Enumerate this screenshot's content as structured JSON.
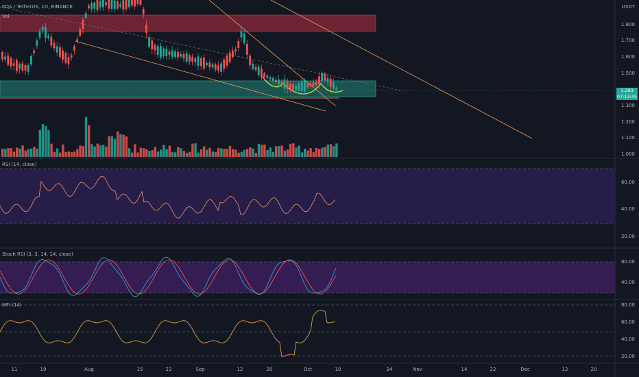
{
  "symbol_line": {
    "pair": "KDA / TetherUS",
    "interval": "1D",
    "exchange": "BINANCE"
  },
  "main_pane": {
    "volume_label": "Vol",
    "currency_label": "USDT",
    "price_axis": [
      "1.800",
      "1.700",
      "1.600",
      "1.500",
      "1.300",
      "1.200",
      "1.100",
      "1.000"
    ],
    "current_price": "1.393",
    "countdown": "07:13:45"
  },
  "rsi_pane": {
    "title": "RSI (14, close)",
    "axis": [
      "60.00",
      "40.00",
      "20.00"
    ]
  },
  "stoch_pane": {
    "title": "Stoch RSI (3, 3, 14, 14, close)",
    "axis": [
      "80.00",
      "40.00"
    ]
  },
  "mfi_pane": {
    "title": "MFI (14)",
    "axis": [
      "80.00",
      "60.00",
      "40.00",
      "20.00"
    ]
  },
  "time_axis": [
    "11",
    "19",
    "Aug",
    "15",
    "23",
    "Sep",
    "12",
    "20",
    "Oct",
    "10",
    "24",
    "Nov",
    "14",
    "22",
    "Dec",
    "12",
    "20"
  ],
  "colors": {
    "background": "#131722",
    "up": "#26a69a",
    "down": "#ef5350",
    "trendline": "#f7a35c",
    "resistance_zone": "#8b2a3a",
    "support_zone": "#1e6e63",
    "rsi_band": "#2a1f4f",
    "rsi_line": "#e38a5e",
    "stoch_k": "#2e9fd8",
    "stoch_d": "#ef5350",
    "mfi_line": "#e0a040",
    "pattern": "#c8e04a"
  }
}
